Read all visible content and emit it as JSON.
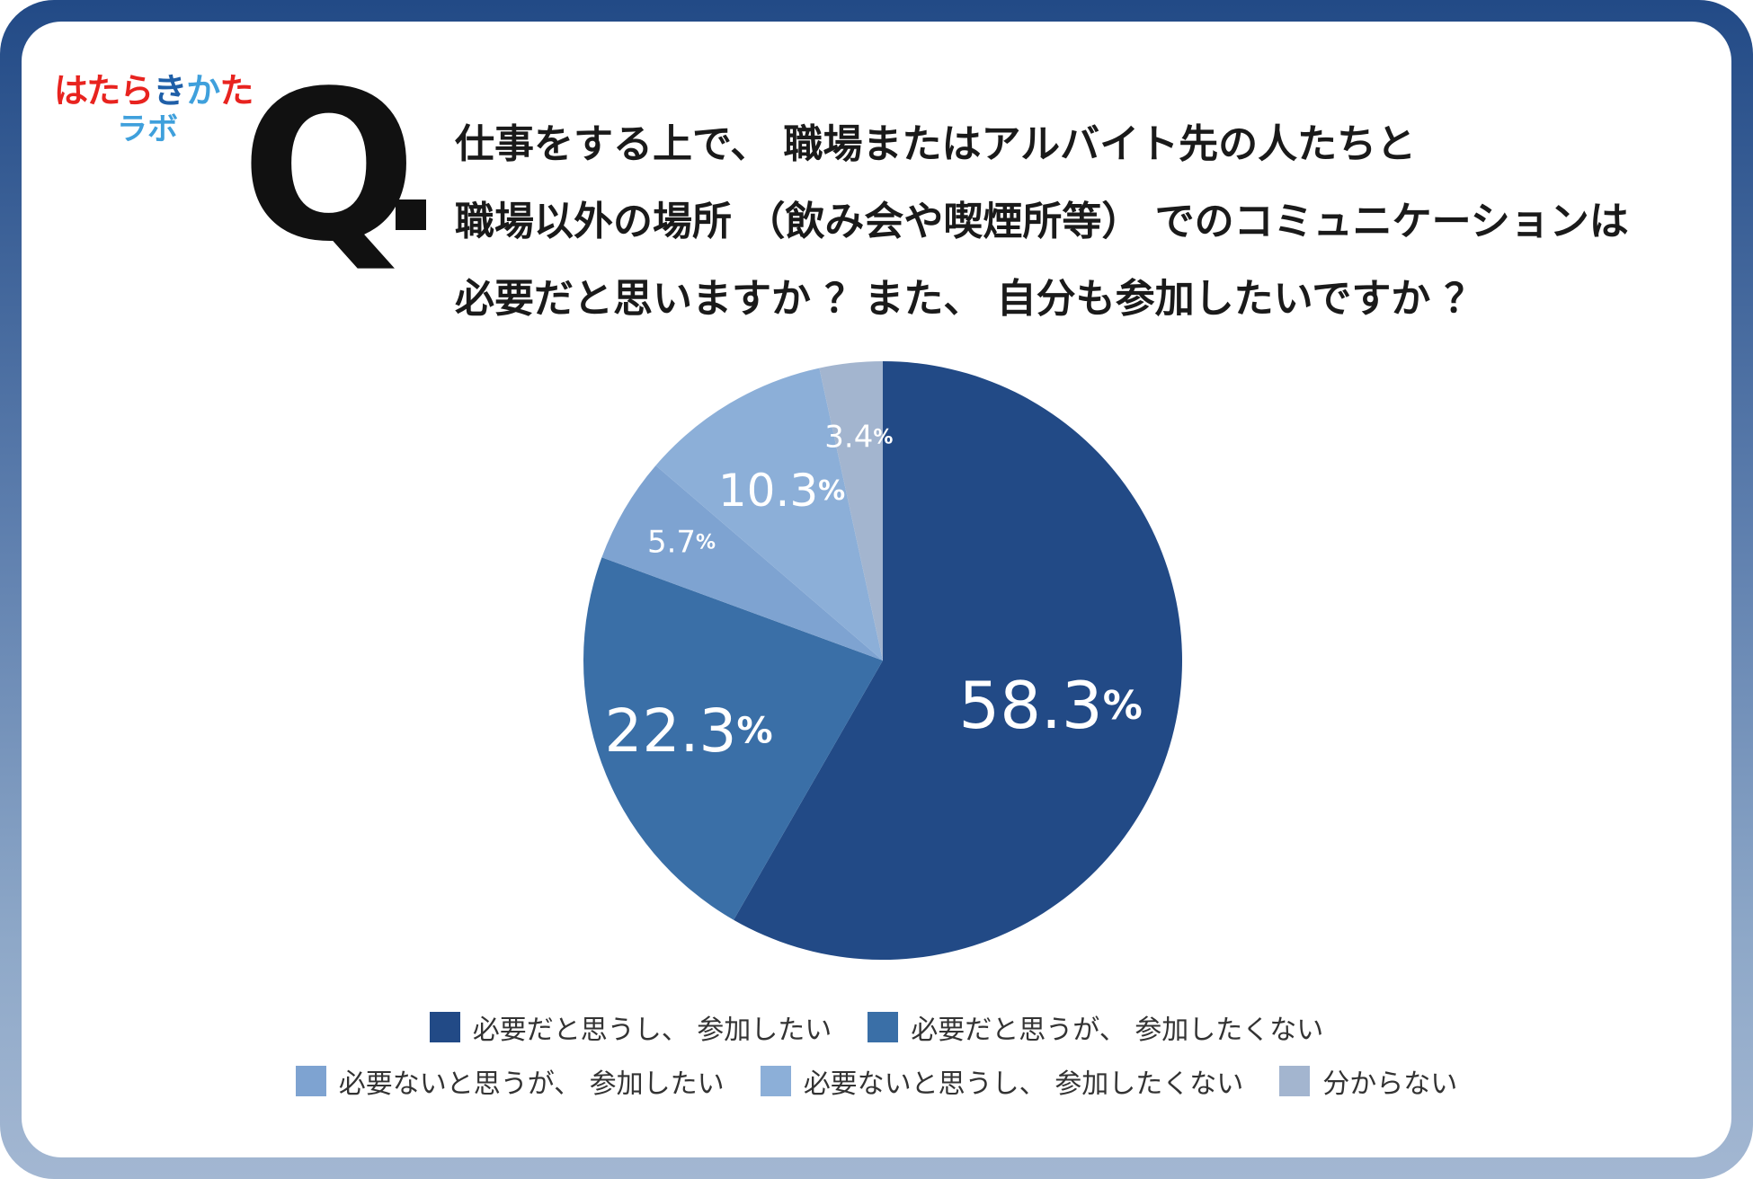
{
  "logo": {
    "line1": [
      "は",
      "た",
      "ら",
      "き",
      "か",
      "た"
    ],
    "line2": "ラボ",
    "colors": [
      "#e8231f",
      "#e8231f",
      "#e8231f",
      "#1f5fa8",
      "#3fa0dc",
      "#e8231f"
    ]
  },
  "question": {
    "prefix": "Q",
    "lines": [
      "仕事をする上で、 職場またはアルバイト先の人たちと",
      "職場以外の場所 （飲み会や喫煙所等） でのコミュニケーションは",
      "必要だと思いますか ？また、 自分も参加したいですか ？"
    ]
  },
  "chart_data": {
    "type": "pie",
    "start_angle_deg": 0,
    "direction": "clockwise",
    "series": [
      {
        "name": "必要だと思うし、 参加したい",
        "value": 58.3,
        "label": "58.3",
        "color": "#224a86"
      },
      {
        "name": "必要だと思うが、 参加したくない",
        "value": 22.3,
        "label": "22.3",
        "color": "#3a6fa7"
      },
      {
        "name": "必要ないと思うが、 参加したい",
        "value": 5.7,
        "label": "5.7",
        "color": "#7ea3d1"
      },
      {
        "name": "必要ないと思うし、 参加したくない",
        "value": 10.3,
        "label": "10.3",
        "color": "#8cafd8"
      },
      {
        "name": "分からない",
        "value": 3.4,
        "label": "3.4",
        "color": "#a3b5cf"
      }
    ],
    "unit": "%",
    "legend_position": "bottom"
  }
}
